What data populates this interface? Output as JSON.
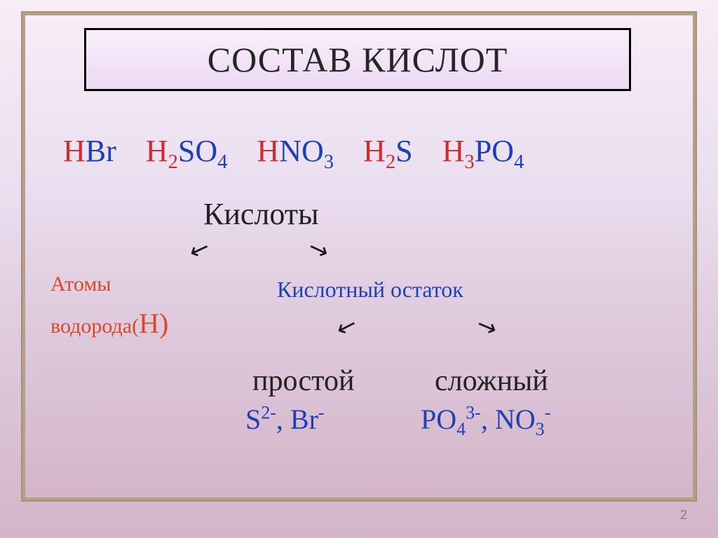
{
  "title": "СОСТАВ КИСЛОТ",
  "formulas": {
    "hbr": {
      "h": "H",
      "rest": "Br"
    },
    "h2so4": {
      "h": "H",
      "hsub": "2",
      "rest1": "SO",
      "sub": "4"
    },
    "hno3": {
      "h": "H",
      "rest1": "NO",
      "sub": "3"
    },
    "h2s": {
      "h": "H",
      "hsub": "2",
      "rest": "S"
    },
    "h3po4": {
      "h": "H",
      "hsub": "3",
      "rest1": "PO",
      "sub": "4"
    }
  },
  "labels": {
    "acids": "Кислоты",
    "atoms_line1": "Атомы",
    "atoms_line2": "водорода(",
    "atoms_H": "Н",
    "atoms_close": ")",
    "acid_residue": "Кислотный остаток",
    "simple": "простой",
    "complex": "сложный"
  },
  "residues": {
    "simple": {
      "s": "S",
      "s_sup": "2-",
      "comma": ", ",
      "br": "Br",
      "br_sup": "-"
    },
    "complex": {
      "po": "PO",
      "po_sub": "4",
      "po_sup": "3-",
      "comma": ", ",
      "no": "NO",
      "no_sub": "3",
      "no_sup": "-"
    }
  },
  "page_number": "2",
  "colors": {
    "red": "#d12b2b",
    "blue": "#1e3fb8",
    "title_text": "#262626",
    "bg_tan": "#b5a189",
    "body_text": "#222"
  },
  "fontsizes": {
    "title": 50,
    "formulas": 44,
    "acids": 44,
    "atoms": 30,
    "residue_label": 32,
    "branch_labels": 42,
    "branch_formulas": 40,
    "pagenum": 18
  }
}
